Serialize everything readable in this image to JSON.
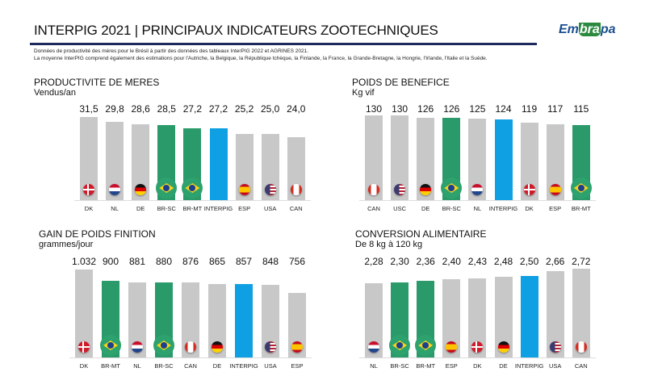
{
  "header": {
    "title": "INTERPIG 2021 | PRINCIPAUX INDICATEURS ZOOTECHNIQUES",
    "logo": "Embrapa"
  },
  "notes": [
    "Données de productivité des mères pour le Brésil à partir des données des tableaux InterPIG 2022 et AGRINES 2021.",
    "La moyenne InterPIG comprend également des estimations pour l'Autriche, la Belgique, la République tchèque, la Finlande, la France, la Grande-Bretagne, la Hongrie, l'Irlande, l'Italie et la Suède."
  ],
  "colors": {
    "other": "#c8c8c8",
    "brazil": "#2a9a6a",
    "interpig": "#0ea0e2"
  },
  "chart_data": [
    {
      "type": "bar",
      "title": "PRODUCTIVITE DE MERES",
      "subtitle": "Vendus/an",
      "categories": [
        "DK",
        "NL",
        "DE",
        "BR-SC",
        "BR-MT",
        "INTERPIG",
        "ESP",
        "USA",
        "CAN"
      ],
      "labels": [
        "31,5",
        "29,8",
        "28,6",
        "28,5",
        "27,2",
        "27,2",
        "25,2",
        "25,0",
        "24,0"
      ],
      "values": [
        31.5,
        29.8,
        28.6,
        28.5,
        27.2,
        27.2,
        25.2,
        25.0,
        24.0
      ],
      "flags": [
        "dk",
        "nl",
        "de",
        "br",
        "br",
        "",
        "es",
        "us",
        "ca"
      ]
    },
    {
      "type": "bar",
      "title": "POIDS DE BENEFICE",
      "subtitle": "Kg vif",
      "categories": [
        "CAN",
        "USC",
        "DE",
        "BR-SC",
        "NL",
        "INTERPIG",
        "DK",
        "ESP",
        "BR-MT"
      ],
      "labels": [
        "130",
        "130",
        "126",
        "126",
        "125",
        "124",
        "119",
        "117",
        "115"
      ],
      "values": [
        130,
        130,
        126,
        126,
        125,
        124,
        119,
        117,
        115
      ],
      "flags": [
        "ca",
        "us",
        "de",
        "br",
        "nl",
        "",
        "dk",
        "es",
        "br"
      ]
    },
    {
      "type": "bar",
      "title": "GAIN DE POIDS FINITION",
      "subtitle": "grammes/jour",
      "categories": [
        "DK",
        "BR-MT",
        "NL",
        "BR-SC",
        "CAN",
        "DE",
        "INTERPIG",
        "USA",
        "ESP"
      ],
      "labels": [
        "1.032",
        "900",
        "881",
        "880",
        "876",
        "865",
        "857",
        "848",
        "756"
      ],
      "values": [
        1032,
        900,
        881,
        880,
        876,
        865,
        857,
        848,
        756
      ],
      "flags": [
        "dk",
        "br",
        "nl",
        "br",
        "ca",
        "de",
        "",
        "us",
        "es"
      ]
    },
    {
      "type": "bar",
      "title": "CONVERSION ALIMENTAIRE",
      "subtitle": "De 8 kg à 120 kg",
      "categories": [
        "NL",
        "BR-SC",
        "BR-MT",
        "ESP",
        "DK",
        "DE",
        "INTERPIG",
        "USA",
        "CAN"
      ],
      "labels": [
        "2,28",
        "2,30",
        "2,36",
        "2,40",
        "2,43",
        "2,48",
        "2,50",
        "2,66",
        "2,72"
      ],
      "values": [
        2.28,
        2.3,
        2.36,
        2.4,
        2.43,
        2.48,
        2.5,
        2.66,
        2.72
      ],
      "flags": [
        "nl",
        "br",
        "br",
        "es",
        "dk",
        "de",
        "",
        "us",
        "ca"
      ]
    }
  ]
}
